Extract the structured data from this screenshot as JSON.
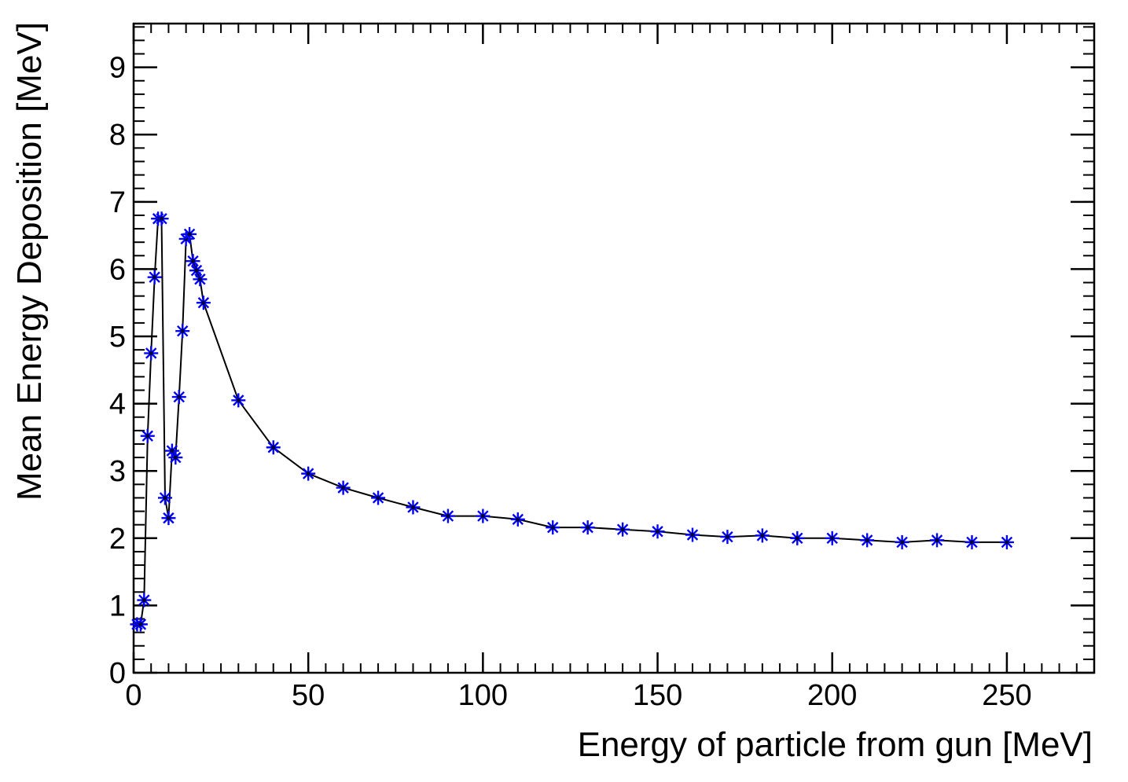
{
  "chart_data": {
    "type": "scatter",
    "title": "",
    "xlabel": "Energy of particle from gun [MeV]",
    "ylabel": "Mean Energy Deposition [MeV]",
    "xlim": [
      0,
      275
    ],
    "ylim": [
      0,
      9.65
    ],
    "x_ticks": [
      0,
      50,
      100,
      150,
      200,
      250
    ],
    "y_ticks": [
      0,
      1,
      2,
      3,
      4,
      5,
      6,
      7,
      8,
      9
    ],
    "x_minor_step": 5,
    "y_minor_step": 0.2,
    "grid": false,
    "connect_points": true,
    "colors": {
      "marker": "#0000ff",
      "line": "#000000",
      "frame": "#000000"
    },
    "series": [
      {
        "x": [
          1,
          2,
          3,
          4,
          5,
          6,
          7,
          8,
          9,
          10,
          11,
          12,
          13,
          14,
          15,
          16,
          17,
          18,
          19,
          20,
          30,
          40,
          50,
          60,
          70,
          80,
          90,
          100,
          110,
          120,
          130,
          140,
          150,
          160,
          170,
          180,
          190,
          200,
          210,
          220,
          230,
          240,
          250
        ],
        "y": [
          0.72,
          0.72,
          1.08,
          3.52,
          4.75,
          5.88,
          6.75,
          6.75,
          2.6,
          2.3,
          3.3,
          3.2,
          4.1,
          5.08,
          6.45,
          6.52,
          6.12,
          5.98,
          5.85,
          5.5,
          4.05,
          3.35,
          2.96,
          2.75,
          2.6,
          2.46,
          2.33,
          2.33,
          2.28,
          2.16,
          2.16,
          2.13,
          2.1,
          2.05,
          2.02,
          2.04,
          2.0,
          2.0,
          1.97,
          1.94,
          1.97,
          1.94,
          1.94
        ]
      }
    ]
  }
}
